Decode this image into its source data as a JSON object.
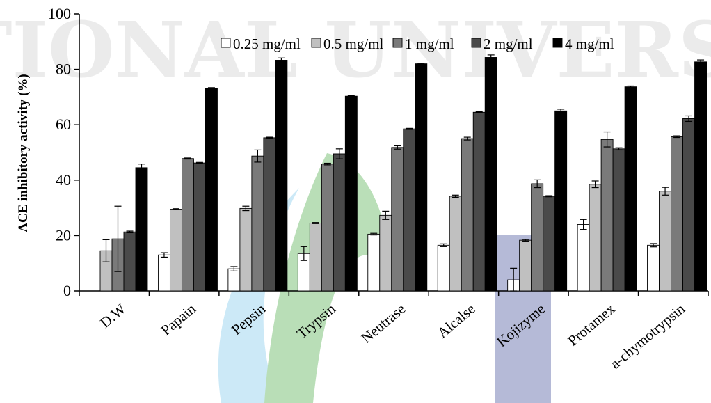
{
  "chart_data": {
    "type": "bar",
    "title": "",
    "xlabel": "",
    "ylabel": "ACE inhibitory activity (%)",
    "ylim": [
      0,
      100
    ],
    "yticks": [
      0,
      20,
      40,
      60,
      80,
      100
    ],
    "grid": false,
    "legend_position": "top-right",
    "watermark_text": "NATIONAL UNIVERSITY",
    "categories": [
      "D.W",
      "Papain",
      "Pepsin",
      "Trypsin",
      "Neutrase",
      "Alcalse",
      "Kojizyme",
      "Protamex",
      "a-chymotrypsin"
    ],
    "series": [
      {
        "name": "0.25 mg/ml",
        "color": "#ffffff",
        "values": [
          0,
          13,
          8,
          13.5,
          20.5,
          16.5,
          4,
          24,
          16.5
        ],
        "errors": [
          0,
          0.8,
          0.8,
          2.5,
          0.3,
          0.5,
          4.2,
          1.8,
          0.6
        ]
      },
      {
        "name": "0.5 mg/ml",
        "color": "#c0c0c0",
        "values": [
          14.5,
          29.5,
          29.8,
          24.5,
          27.3,
          34.2,
          18.3,
          38.5,
          36
        ],
        "errors": [
          4,
          0.2,
          0.8,
          0.2,
          1.5,
          0.4,
          0.3,
          1.2,
          1.4
        ]
      },
      {
        "name": "1 mg/ml",
        "color": "#7a7a7a",
        "values": [
          18.8,
          47.8,
          48.7,
          45.8,
          51.8,
          55,
          38.7,
          54.7,
          55.7
        ],
        "errors": [
          11.8,
          0.2,
          2.2,
          0.3,
          0.6,
          0.5,
          1.4,
          2.7,
          0.3
        ]
      },
      {
        "name": "2 mg/ml",
        "color": "#4a4a4a",
        "values": [
          21.3,
          46.2,
          55.3,
          49.5,
          58.5,
          64.5,
          34.2,
          51.3,
          62.2
        ],
        "errors": [
          0.3,
          0.2,
          0.2,
          1.8,
          0.2,
          0.2,
          0.2,
          0.4,
          1
        ]
      },
      {
        "name": "4 mg/ml",
        "color": "#000000",
        "values": [
          44.5,
          73.2,
          83.3,
          70.3,
          82,
          84.3,
          65,
          73.7,
          82.7
        ],
        "errors": [
          1.3,
          0.2,
          0.8,
          0.2,
          0.2,
          0.9,
          0.6,
          0.3,
          0.7
        ]
      }
    ]
  }
}
